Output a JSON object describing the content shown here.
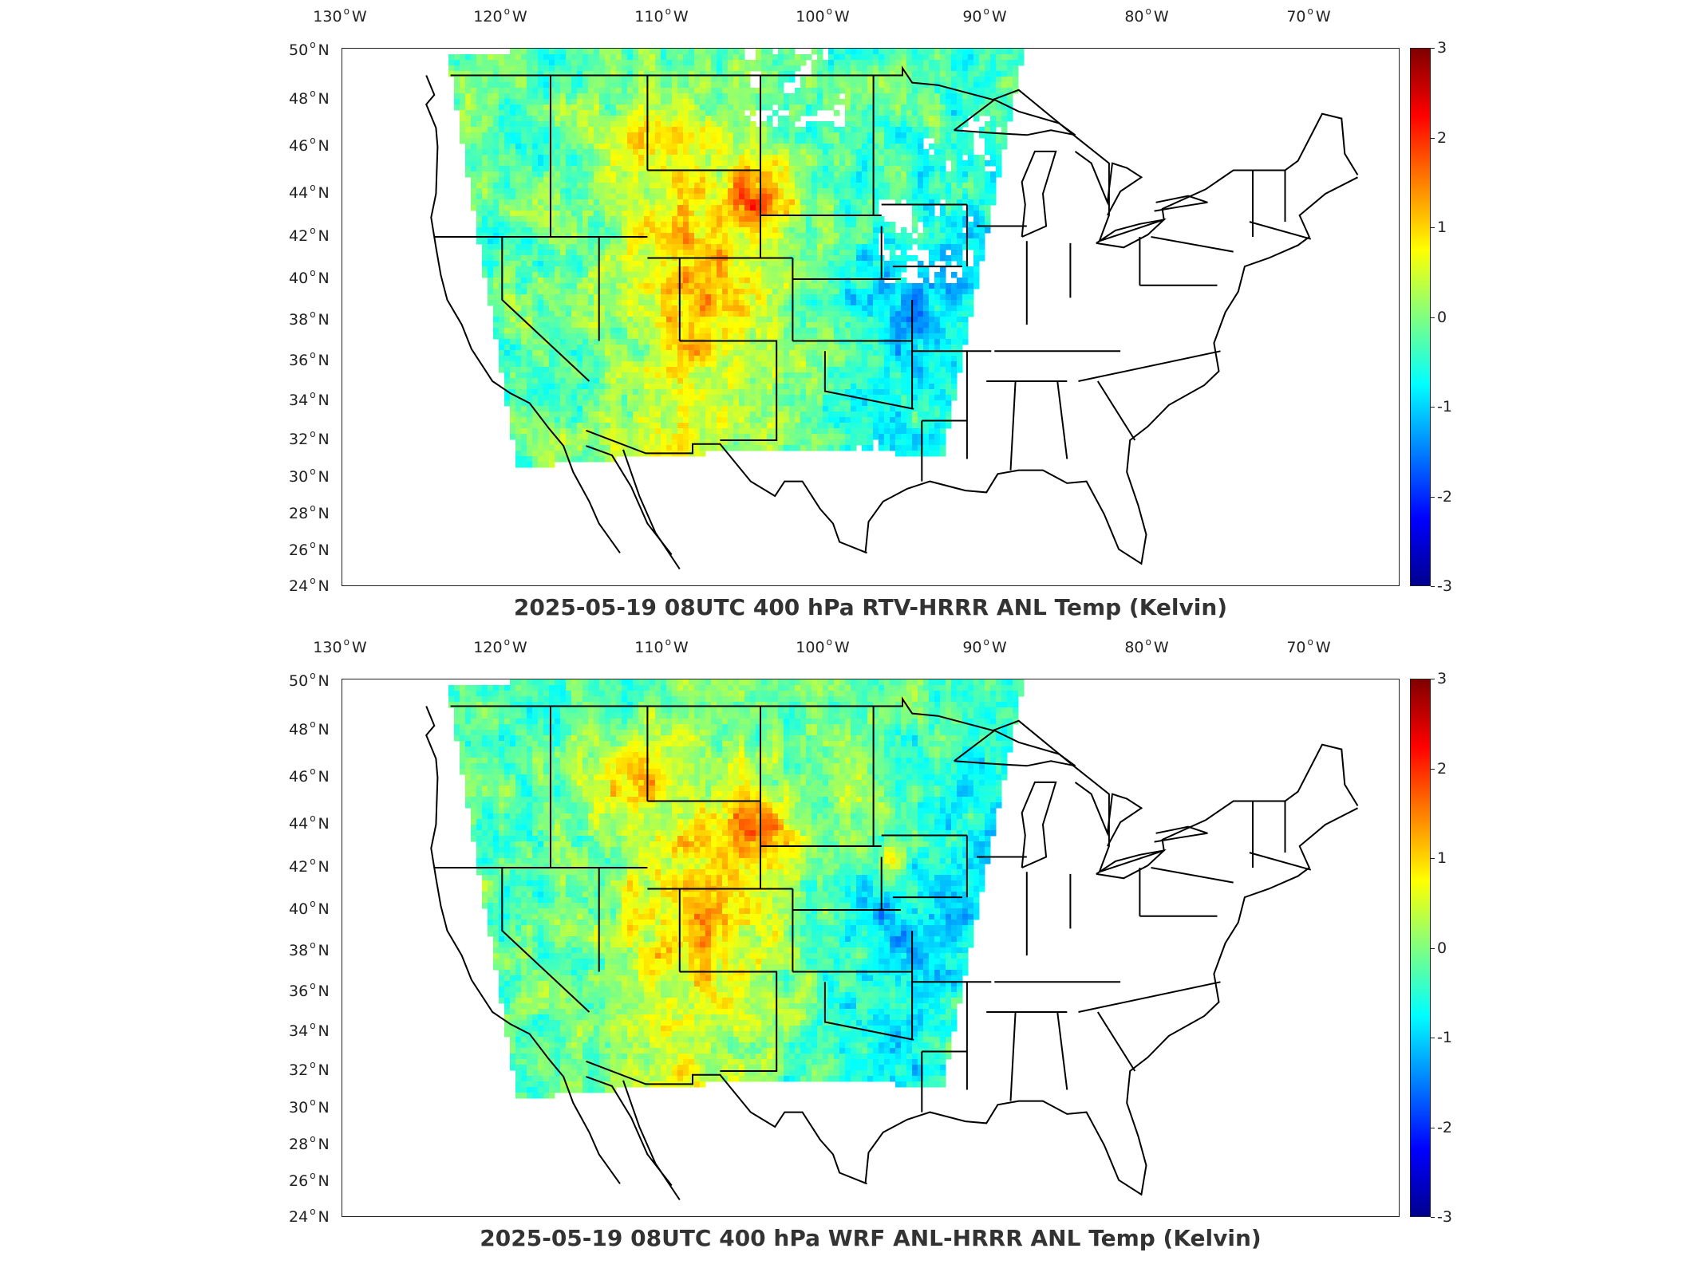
{
  "panels": [
    {
      "title": "2025-05-19 08UTC 400 hPa RTV-HRRR ANL Temp (Kelvin)",
      "variant": "rtv"
    },
    {
      "title": "2025-05-19 08UTC 400 hPa WRF ANL-HRRR ANL Temp (Kelvin)",
      "variant": "wrf"
    }
  ],
  "axes": {
    "longitude_labels": [
      {
        "value": 130,
        "text": "130",
        "hemi": "W"
      },
      {
        "value": 120,
        "text": "120",
        "hemi": "W"
      },
      {
        "value": 110,
        "text": "110",
        "hemi": "W"
      },
      {
        "value": 100,
        "text": "100",
        "hemi": "W"
      },
      {
        "value": 90,
        "text": "90",
        "hemi": "W"
      },
      {
        "value": 80,
        "text": "80",
        "hemi": "W"
      },
      {
        "value": 70,
        "text": "70",
        "hemi": "W"
      }
    ],
    "latitude_labels": [
      {
        "value": 50,
        "text": "50",
        "hemi": "N"
      },
      {
        "value": 48,
        "text": "48",
        "hemi": "N"
      },
      {
        "value": 46,
        "text": "46",
        "hemi": "N"
      },
      {
        "value": 44,
        "text": "44",
        "hemi": "N"
      },
      {
        "value": 42,
        "text": "42",
        "hemi": "N"
      },
      {
        "value": 40,
        "text": "40",
        "hemi": "N"
      },
      {
        "value": 38,
        "text": "38",
        "hemi": "N"
      },
      {
        "value": 36,
        "text": "36",
        "hemi": "N"
      },
      {
        "value": 34,
        "text": "34",
        "hemi": "N"
      },
      {
        "value": 32,
        "text": "32",
        "hemi": "N"
      },
      {
        "value": 30,
        "text": "30",
        "hemi": "N"
      },
      {
        "value": 28,
        "text": "28",
        "hemi": "N"
      },
      {
        "value": 26,
        "text": "26",
        "hemi": "N"
      },
      {
        "value": 24,
        "text": "24",
        "hemi": "N"
      }
    ]
  },
  "colorbar": {
    "min": -3,
    "max": 3,
    "ticks": [
      "3",
      "2",
      "1",
      "0",
      "-1",
      "-2",
      "-3"
    ],
    "tick_values": [
      3,
      2,
      1,
      0,
      -1,
      -2,
      -3
    ],
    "colormap": "jet",
    "colors": [
      "#00008f",
      "#0000ff",
      "#0080ff",
      "#00ffff",
      "#80ff80",
      "#ffff00",
      "#ff8000",
      "#ff0000",
      "#800000"
    ]
  }
}
